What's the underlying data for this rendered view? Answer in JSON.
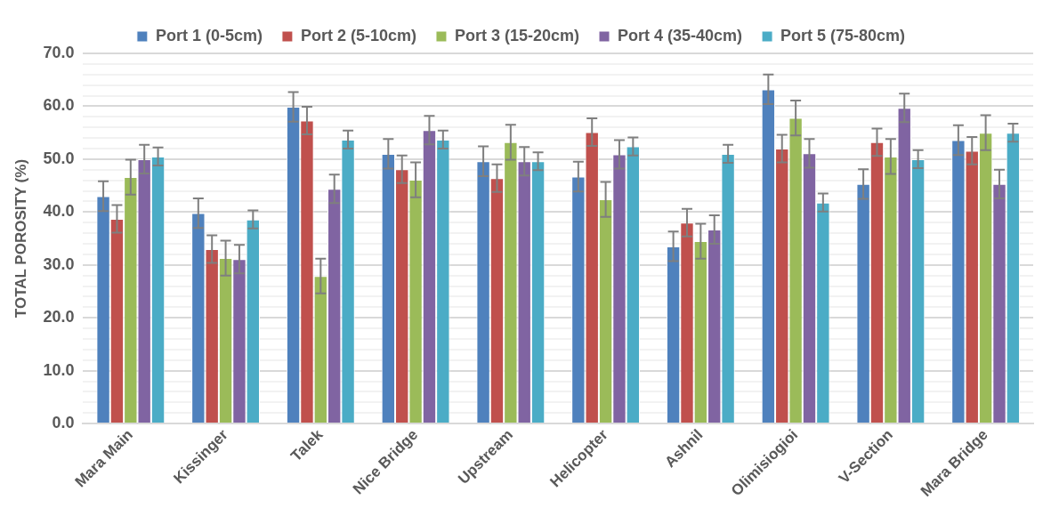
{
  "chart_data": {
    "type": "bar",
    "ylabel": "TOTAL POROSITY (%)",
    "categories": [
      "Mara Main",
      "Kissinger",
      "Talek",
      "Nice Bridge",
      "Upstream",
      "Helicopter",
      "Ashnil",
      "Olimisiogioi",
      "V-Section",
      "Mara Bridge"
    ],
    "series": [
      {
        "name": "Port 1 (0-5cm)",
        "color": "#4f81bd",
        "values": [
          43.0,
          39.8,
          59.9,
          51.0,
          49.6,
          46.7,
          33.5,
          63.2,
          45.3,
          53.6
        ],
        "errors": [
          2.8,
          2.8,
          2.8,
          2.8,
          2.8,
          2.8,
          2.8,
          2.8,
          2.8,
          2.8
        ]
      },
      {
        "name": "Port 2 (5-10cm)",
        "color": "#c0504d",
        "values": [
          38.7,
          33.0,
          57.3,
          48.1,
          46.4,
          55.1,
          38.0,
          52.0,
          53.2,
          51.6
        ],
        "errors": [
          2.6,
          2.6,
          2.6,
          2.6,
          2.6,
          2.6,
          2.6,
          2.6,
          2.6,
          2.6
        ]
      },
      {
        "name": "Port 3 (15-20cm)",
        "color": "#9bbb59",
        "values": [
          46.6,
          31.3,
          27.9,
          46.1,
          53.2,
          42.4,
          34.5,
          57.8,
          50.5,
          55.0
        ],
        "errors": [
          3.3,
          3.3,
          3.3,
          3.3,
          3.3,
          3.3,
          3.3,
          3.3,
          3.3,
          3.3
        ]
      },
      {
        "name": "Port 4 (35-40cm)",
        "color": "#8064a2",
        "values": [
          50.0,
          31.1,
          44.4,
          55.5,
          49.6,
          50.9,
          36.7,
          51.1,
          59.7,
          45.3
        ],
        "errors": [
          2.7,
          2.7,
          2.7,
          2.7,
          2.7,
          2.7,
          2.7,
          2.7,
          2.7,
          2.7
        ]
      },
      {
        "name": "Port 5 (75-80cm)",
        "color": "#4bacc6",
        "values": [
          50.5,
          38.6,
          53.7,
          53.7,
          49.6,
          52.4,
          51.0,
          41.8,
          50.0,
          55.0
        ],
        "errors": [
          1.7,
          1.7,
          1.7,
          1.7,
          1.7,
          1.7,
          1.7,
          1.7,
          1.7,
          1.7
        ]
      }
    ],
    "ylim": [
      0,
      70
    ],
    "yticks": [
      {
        "value": 0,
        "label": "0.0"
      },
      {
        "value": 2,
        "label": null
      },
      {
        "value": 4,
        "label": null
      },
      {
        "value": 6,
        "label": null
      },
      {
        "value": 8,
        "label": null
      },
      {
        "value": 10,
        "label": "10.0"
      },
      {
        "value": 12,
        "label": null
      },
      {
        "value": 14,
        "label": null
      },
      {
        "value": 16,
        "label": null
      },
      {
        "value": 18,
        "label": null
      },
      {
        "value": 20,
        "label": "20.0"
      },
      {
        "value": 22,
        "label": null
      },
      {
        "value": 24,
        "label": null
      },
      {
        "value": 26,
        "label": null
      },
      {
        "value": 28,
        "label": null
      },
      {
        "value": 30,
        "label": "30.0"
      },
      {
        "value": 32,
        "label": null
      },
      {
        "value": 34,
        "label": null
      },
      {
        "value": 36,
        "label": null
      },
      {
        "value": 38,
        "label": null
      },
      {
        "value": 40,
        "label": "40.0"
      },
      {
        "value": 42,
        "label": null
      },
      {
        "value": 44,
        "label": null
      },
      {
        "value": 46,
        "label": null
      },
      {
        "value": 48,
        "label": null
      },
      {
        "value": 50,
        "label": "50.0"
      },
      {
        "value": 52,
        "label": null
      },
      {
        "value": 54,
        "label": null
      },
      {
        "value": 56,
        "label": null
      },
      {
        "value": 58,
        "label": null
      },
      {
        "value": 60,
        "label": "60.0"
      },
      {
        "value": 62,
        "label": null
      },
      {
        "value": 64,
        "label": null
      },
      {
        "value": 66,
        "label": null
      },
      {
        "value": 68,
        "label": null
      },
      {
        "value": 70,
        "label": "70.0"
      }
    ],
    "grid": "y",
    "legend": "top"
  }
}
